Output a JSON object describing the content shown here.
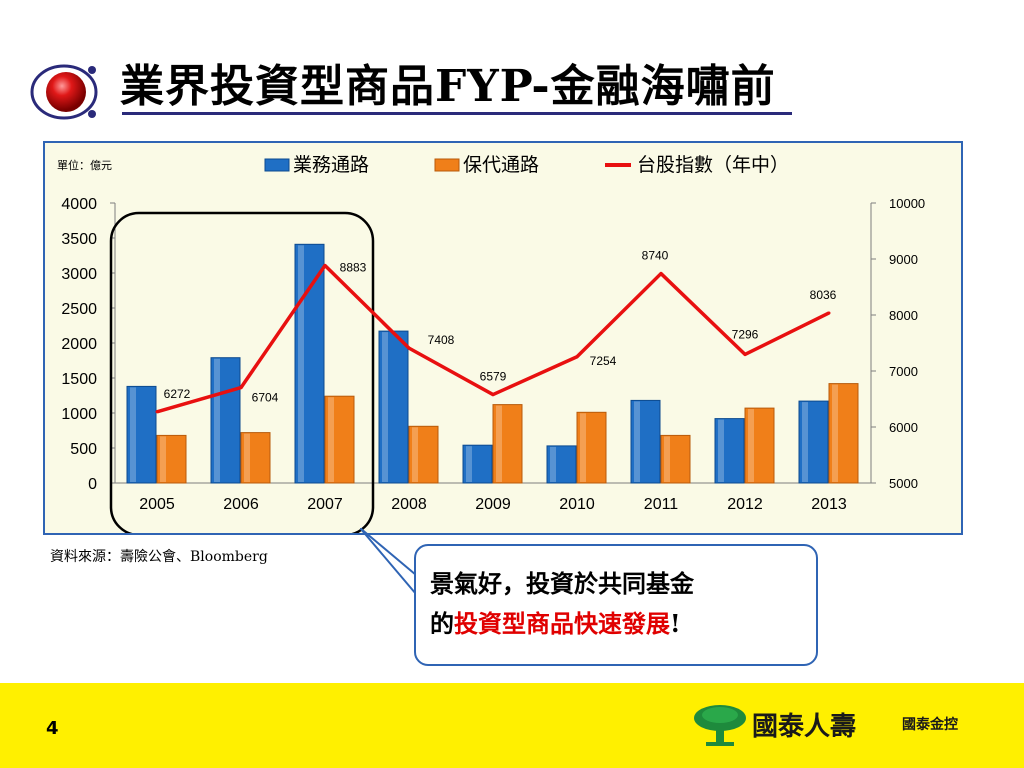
{
  "title": "業界投資型商品FYP-金融海嘯前",
  "unit_label": "單位：億元",
  "source": "資料來源：壽險公會、Bloomberg",
  "callout": {
    "line1": "景氣好，投資於共同基金",
    "line2_prefix": "的",
    "line2_highlight": "投資型商品快速發展",
    "line2_suffix": "!"
  },
  "page_number": "4",
  "logo": {
    "name": "國泰人壽",
    "sub": "國泰金控"
  },
  "colors": {
    "blue": "#1f6fc5",
    "orange": "#f07f19",
    "red": "#e81010"
  },
  "chart_data": {
    "type": "bar",
    "categories": [
      "2005",
      "2006",
      "2007",
      "2008",
      "2009",
      "2010",
      "2011",
      "2012",
      "2013"
    ],
    "series": [
      {
        "name": "業務通路",
        "type": "bar",
        "axis": "left",
        "values": [
          1380,
          1790,
          3410,
          2170,
          540,
          530,
          1180,
          920,
          1170
        ]
      },
      {
        "name": "保代通路",
        "type": "bar",
        "axis": "left",
        "values": [
          680,
          720,
          1240,
          810,
          1120,
          1010,
          680,
          1070,
          1420
        ]
      },
      {
        "name": "台股指數（年中）",
        "type": "line",
        "axis": "right",
        "values": [
          6272,
          6704,
          8883,
          7408,
          6579,
          7254,
          8740,
          7296,
          8036
        ]
      }
    ],
    "y_left": {
      "ylim": [
        0,
        4000
      ],
      "ticks": [
        "0",
        "500",
        "1000",
        "1500",
        "2000",
        "2500",
        "3000",
        "3500",
        "4000"
      ]
    },
    "y_right": {
      "ylim": [
        5000,
        10000
      ],
      "ticks": [
        "5000",
        "6000",
        "7000",
        "8000",
        "9000",
        "10000"
      ]
    },
    "legend_placement": "top",
    "highlight": {
      "from": "2005",
      "to": "2007"
    }
  }
}
